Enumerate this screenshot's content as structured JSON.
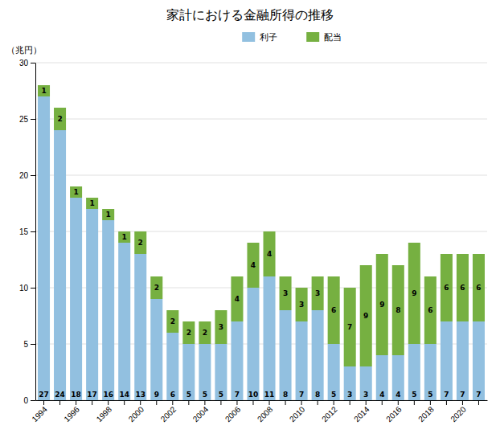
{
  "chart_data": {
    "type": "bar",
    "title": "家計における金融所得の推移",
    "ylabel": "（兆円）",
    "categories": [
      "1994",
      null,
      "1996",
      null,
      "1998",
      null,
      "2000",
      null,
      "2002",
      null,
      "2004",
      null,
      "2006",
      null,
      "2008",
      null,
      "2010",
      null,
      "2012",
      null,
      "2014",
      null,
      "2016",
      null,
      "2018",
      null,
      "2020",
      null
    ],
    "series": [
      {
        "name": "利子",
        "color": "#92c0e0",
        "values": [
          27,
          24,
          18,
          17,
          16,
          14,
          13,
          9,
          6,
          5,
          5,
          5,
          7,
          10,
          11,
          8,
          7,
          8,
          5,
          3,
          3,
          4,
          4,
          5,
          5,
          7,
          7,
          7
        ]
      },
      {
        "name": "配当",
        "color": "#76b041",
        "values": [
          1,
          2,
          1,
          1,
          1,
          1,
          2,
          2,
          2,
          2,
          2,
          3,
          4,
          4,
          4,
          3,
          3,
          3,
          6,
          7,
          9,
          9,
          8,
          9,
          6,
          6,
          6,
          6
        ]
      }
    ],
    "ylim": [
      0,
      30
    ],
    "yticks": [
      0,
      5,
      10,
      15,
      20,
      25,
      30
    ],
    "stacked": true,
    "grid": true,
    "legend": "top",
    "data_labels": true
  }
}
